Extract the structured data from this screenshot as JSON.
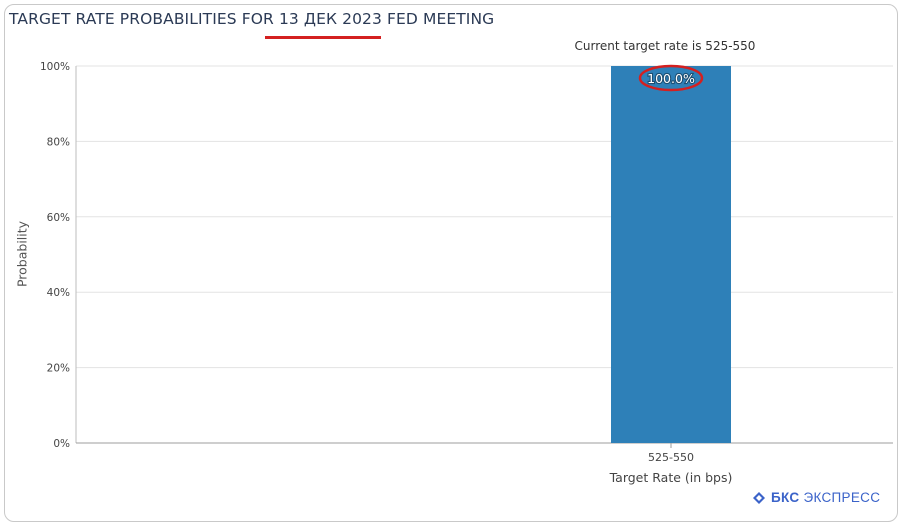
{
  "header": {
    "title": "TARGET RATE PROBABILITIES FOR 13 ДЕК 2023 FED MEETING",
    "subtitle": "Current target rate is 525-550"
  },
  "brand": {
    "name_bold": "БКС",
    "name_rest": "ЭКСПРЕСС",
    "icon": "bks-logo-icon"
  },
  "colors": {
    "bar": "#2e80b8",
    "highlight": "#d42020",
    "title": "#2b3a55"
  },
  "chart_data": {
    "type": "bar",
    "title": "TARGET RATE PROBABILITIES FOR 13 ДЕК 2023 FED MEETING",
    "subtitle": "Current target rate is 525-550",
    "categories": [
      "525-550"
    ],
    "values": [
      100.0
    ],
    "data_labels": [
      "100.0%"
    ],
    "xlabel": "Target Rate (in bps)",
    "ylabel": "Probability",
    "ylim": [
      0,
      100
    ],
    "yticks": [
      "0%",
      "20%",
      "40%",
      "60%",
      "80%",
      "100%"
    ],
    "grid": true,
    "legend": "none"
  }
}
